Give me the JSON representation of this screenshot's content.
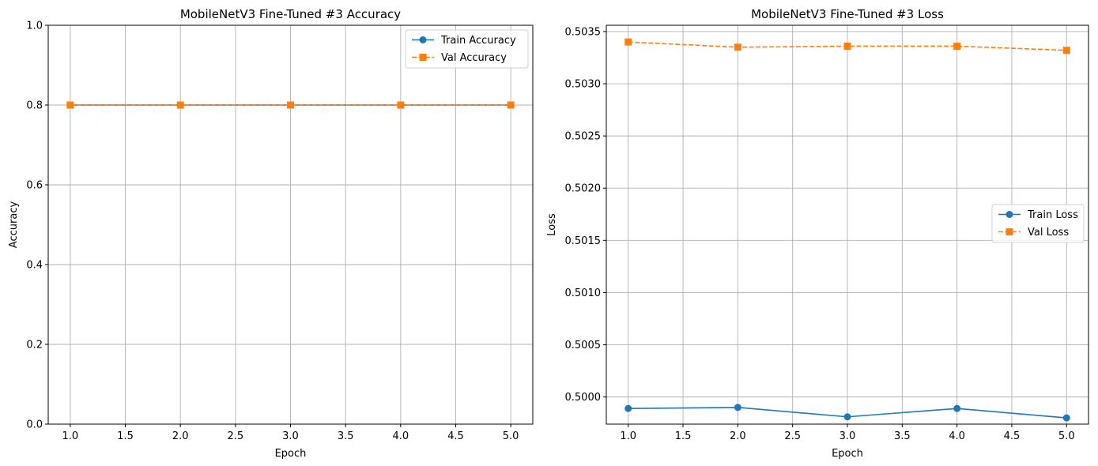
{
  "chart_data": [
    {
      "type": "line",
      "title": "MobileNetV3 Fine-Tuned #3 Accuracy",
      "xlabel": "Epoch",
      "ylabel": "Accuracy",
      "xlim": [
        0.8,
        5.2
      ],
      "ylim": [
        0.0,
        1.0
      ],
      "xticks": [
        "1.0",
        "1.5",
        "2.0",
        "2.5",
        "3.0",
        "3.5",
        "4.0",
        "4.5",
        "5.0"
      ],
      "yticks": [
        "0.0",
        "0.2",
        "0.4",
        "0.6",
        "0.8",
        "1.0"
      ],
      "grid": true,
      "legend_position": "top-right",
      "x": [
        1,
        2,
        3,
        4,
        5
      ],
      "series": [
        {
          "name": "Train Accuracy",
          "values": [
            0.8,
            0.8,
            0.8,
            0.8,
            0.8
          ],
          "color": "#1f77b4",
          "style": "solid",
          "marker": "circle"
        },
        {
          "name": "Val Accuracy",
          "values": [
            0.8,
            0.8,
            0.8,
            0.8,
            0.8
          ],
          "color": "#ff7f0e",
          "style": "dashed",
          "marker": "square"
        }
      ]
    },
    {
      "type": "line",
      "title": "MobileNetV3 Fine-Tuned #3 Loss",
      "xlabel": "Epoch",
      "ylabel": "Loss",
      "xlim": [
        0.8,
        5.2
      ],
      "ylim": [
        0.49974,
        0.50356
      ],
      "xticks": [
        "1.0",
        "1.5",
        "2.0",
        "2.5",
        "3.0",
        "3.5",
        "4.0",
        "4.5",
        "5.0"
      ],
      "yticks": [
        "0.5000",
        "0.5005",
        "0.5010",
        "0.5015",
        "0.5020",
        "0.5025",
        "0.5030",
        "0.5035"
      ],
      "grid": true,
      "legend_position": "center-right",
      "x": [
        1,
        2,
        3,
        4,
        5
      ],
      "series": [
        {
          "name": "Train Loss",
          "values": [
            0.49989,
            0.4999,
            0.49981,
            0.49989,
            0.4998
          ],
          "color": "#1f77b4",
          "style": "solid",
          "marker": "circle"
        },
        {
          "name": "Val Loss",
          "values": [
            0.5034,
            0.50335,
            0.50336,
            0.50336,
            0.50332
          ],
          "color": "#ff7f0e",
          "style": "dashed",
          "marker": "square"
        }
      ]
    }
  ]
}
